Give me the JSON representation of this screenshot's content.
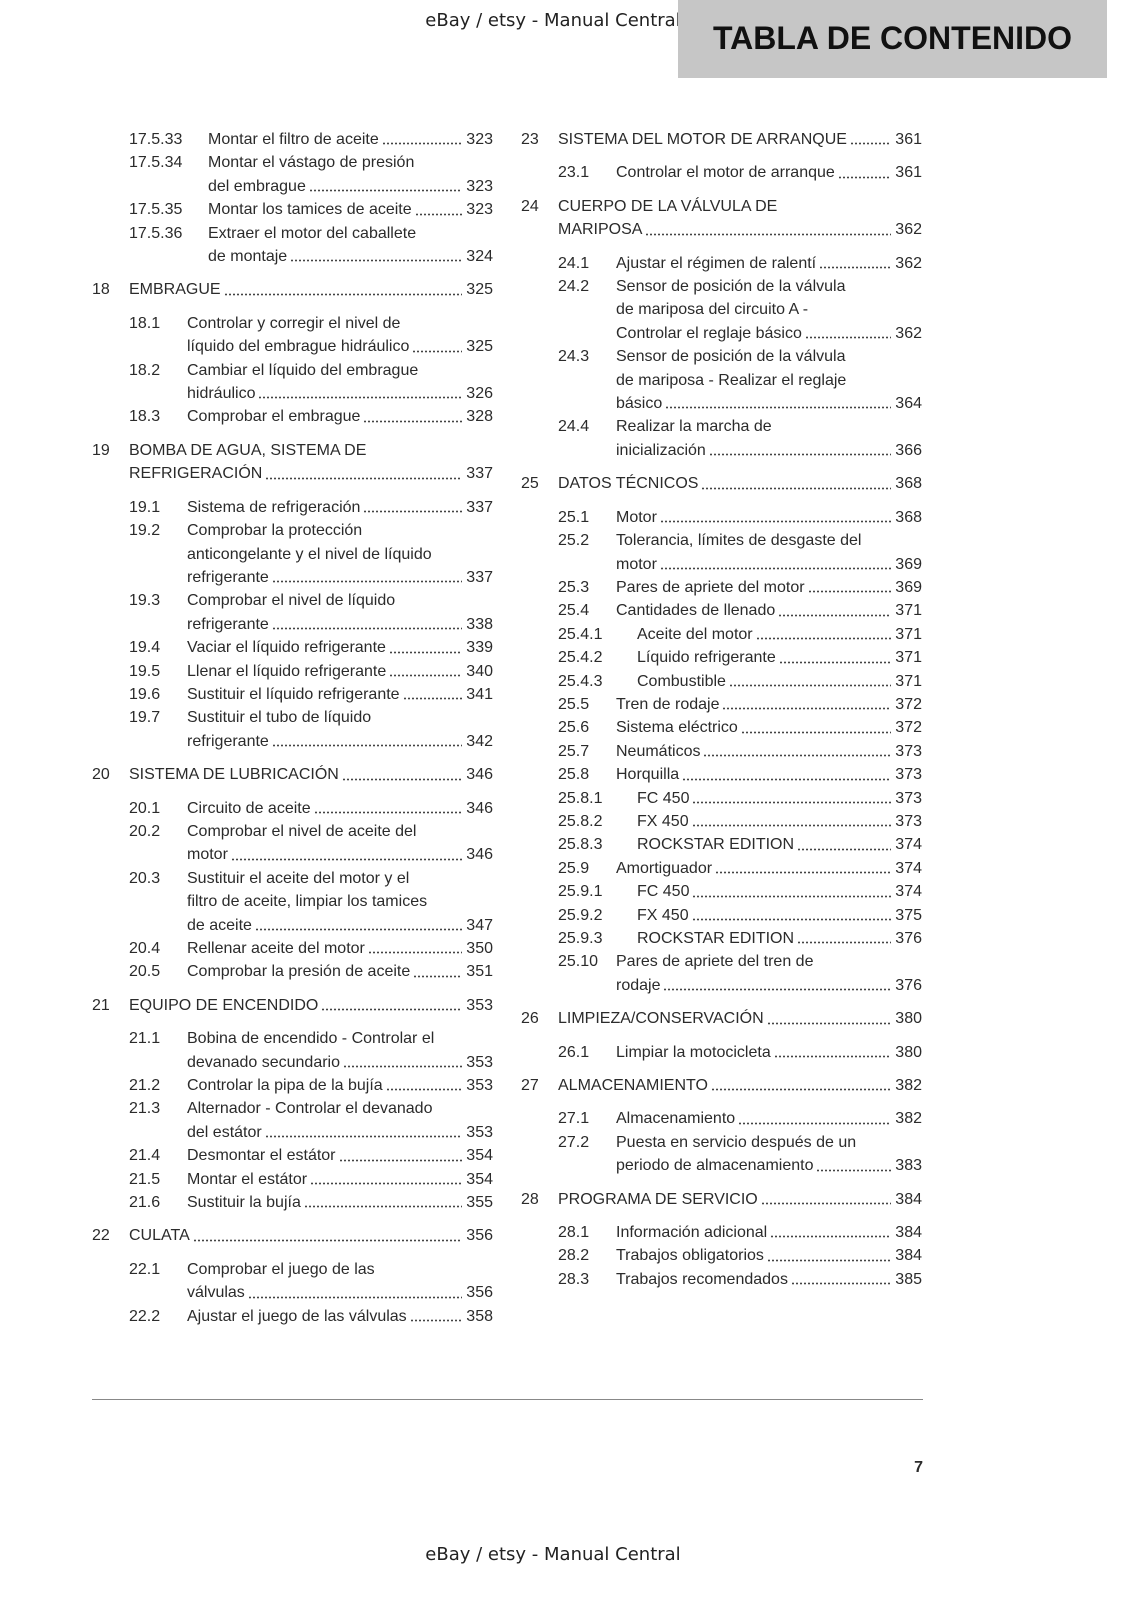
{
  "header": {
    "watermark": "eBay / etsy - Manual Central",
    "title": "TABLA DE CONTENIDO"
  },
  "columns": [
    [
      {
        "number": "17.5.33",
        "lines": [
          "Montar el filtro de aceite"
        ],
        "page": "323"
      },
      {
        "number": "17.5.34",
        "lines": [
          "Montar el vástago de presión",
          "del embrague"
        ],
        "page": "323"
      },
      {
        "number": "17.5.35",
        "lines": [
          "Montar los tamices de aceite"
        ],
        "page": "323"
      },
      {
        "number": "17.5.36",
        "lines": [
          "Extraer el motor del caballete",
          "de montaje"
        ],
        "page": "324"
      },
      {
        "number": "18",
        "lines": [
          "EMBRAGUE"
        ],
        "page": "325"
      },
      {
        "number": "18.1",
        "lines": [
          "Controlar y corregir el nivel de",
          "líquido del embrague hidráulico"
        ],
        "page": "325"
      },
      {
        "number": "18.2",
        "lines": [
          "Cambiar el líquido del embrague",
          "hidráulico"
        ],
        "page": "326"
      },
      {
        "number": "18.3",
        "lines": [
          "Comprobar el embrague"
        ],
        "page": "328"
      },
      {
        "number": "19",
        "lines": [
          "BOMBA DE AGUA, SISTEMA DE",
          "REFRIGERACIÓN"
        ],
        "page": "337"
      },
      {
        "number": "19.1",
        "lines": [
          "Sistema de refrigeración"
        ],
        "page": "337"
      },
      {
        "number": "19.2",
        "lines": [
          "Comprobar la protección",
          "anticongelante y el nivel de líquido",
          "refrigerante"
        ],
        "page": "337"
      },
      {
        "number": "19.3",
        "lines": [
          "Comprobar el nivel de líquido",
          "refrigerante"
        ],
        "page": "338"
      },
      {
        "number": "19.4",
        "lines": [
          "Vaciar el líquido refrigerante"
        ],
        "page": "339"
      },
      {
        "number": "19.5",
        "lines": [
          "Llenar el líquido refrigerante"
        ],
        "page": "340"
      },
      {
        "number": "19.6",
        "lines": [
          "Sustituir el líquido refrigerante"
        ],
        "page": "341"
      },
      {
        "number": "19.7",
        "lines": [
          "Sustituir el tubo de líquido",
          "refrigerante"
        ],
        "page": "342"
      },
      {
        "number": "20",
        "lines": [
          "SISTEMA DE LUBRICACIÓN"
        ],
        "page": "346"
      },
      {
        "number": "20.1",
        "lines": [
          "Circuito de aceite"
        ],
        "page": "346"
      },
      {
        "number": "20.2",
        "lines": [
          "Comprobar el nivel de aceite del",
          "motor"
        ],
        "page": "346"
      },
      {
        "number": "20.3",
        "lines": [
          "Sustituir el aceite del motor y el",
          "filtro de aceite, limpiar los tamices",
          "de aceite"
        ],
        "page": "347"
      },
      {
        "number": "20.4",
        "lines": [
          "Rellenar aceite del motor"
        ],
        "page": "350"
      },
      {
        "number": "20.5",
        "lines": [
          "Comprobar la presión de aceite"
        ],
        "page": "351"
      },
      {
        "number": "21",
        "lines": [
          "EQUIPO DE ENCENDIDO"
        ],
        "page": "353"
      },
      {
        "number": "21.1",
        "lines": [
          "Bobina de encendido - Controlar el",
          "devanado secundario"
        ],
        "page": "353"
      },
      {
        "number": "21.2",
        "lines": [
          "Controlar la pipa de la bujía"
        ],
        "page": "353"
      },
      {
        "number": "21.3",
        "lines": [
          "Alternador - Controlar el devanado",
          "del estátor"
        ],
        "page": "353"
      },
      {
        "number": "21.4",
        "lines": [
          "Desmontar el estátor"
        ],
        "page": "354"
      },
      {
        "number": "21.5",
        "lines": [
          "Montar el estátor"
        ],
        "page": "354"
      },
      {
        "number": "21.6",
        "lines": [
          "Sustituir la bujía"
        ],
        "page": "355"
      },
      {
        "number": "22",
        "lines": [
          "CULATA"
        ],
        "page": "356"
      },
      {
        "number": "22.1",
        "lines": [
          "Comprobar el juego de las",
          "válvulas"
        ],
        "page": "356"
      },
      {
        "number": "22.2",
        "lines": [
          "Ajustar el juego de las válvulas"
        ],
        "page": "358"
      }
    ],
    [
      {
        "number": "23",
        "lines": [
          "SISTEMA DEL MOTOR DE ARRANQUE"
        ],
        "page": "361"
      },
      {
        "number": "23.1",
        "lines": [
          "Controlar el motor de arranque"
        ],
        "page": "361"
      },
      {
        "number": "24",
        "lines": [
          "CUERPO DE LA VÁLVULA DE",
          "MARIPOSA"
        ],
        "page": "362"
      },
      {
        "number": "24.1",
        "lines": [
          "Ajustar el régimen de ralentí"
        ],
        "page": "362"
      },
      {
        "number": "24.2",
        "lines": [
          "Sensor de posición de la válvula",
          "de mariposa del circuito A -",
          "Controlar el reglaje básico"
        ],
        "page": "362"
      },
      {
        "number": "24.3",
        "lines": [
          "Sensor de posición de la válvula",
          "de mariposa - Realizar el reglaje",
          "básico"
        ],
        "page": "364"
      },
      {
        "number": "24.4",
        "lines": [
          "Realizar la marcha de",
          "inicialización"
        ],
        "page": "366"
      },
      {
        "number": "25",
        "lines": [
          "DATOS TÉCNICOS"
        ],
        "page": "368"
      },
      {
        "number": "25.1",
        "lines": [
          "Motor"
        ],
        "page": "368"
      },
      {
        "number": "25.2",
        "lines": [
          "Tolerancia, límites de desgaste del",
          "motor"
        ],
        "page": "369"
      },
      {
        "number": "25.3",
        "lines": [
          "Pares de apriete del motor"
        ],
        "page": "369"
      },
      {
        "number": "25.4",
        "lines": [
          "Cantidades de llenado"
        ],
        "page": "371"
      },
      {
        "number": "25.4.1",
        "lines": [
          "Aceite del motor"
        ],
        "page": "371"
      },
      {
        "number": "25.4.2",
        "lines": [
          "Líquido refrigerante"
        ],
        "page": "371"
      },
      {
        "number": "25.4.3",
        "lines": [
          "Combustible"
        ],
        "page": "371"
      },
      {
        "number": "25.5",
        "lines": [
          "Tren de rodaje"
        ],
        "page": "372"
      },
      {
        "number": "25.6",
        "lines": [
          "Sistema eléctrico"
        ],
        "page": "372"
      },
      {
        "number": "25.7",
        "lines": [
          "Neumáticos"
        ],
        "page": "373"
      },
      {
        "number": "25.8",
        "lines": [
          "Horquilla"
        ],
        "page": "373"
      },
      {
        "number": "25.8.1",
        "lines": [
          "FC 450"
        ],
        "page": "373"
      },
      {
        "number": "25.8.2",
        "lines": [
          "FX 450"
        ],
        "page": "373"
      },
      {
        "number": "25.8.3",
        "lines": [
          "ROCKSTAR EDITION"
        ],
        "page": "374"
      },
      {
        "number": "25.9",
        "lines": [
          "Amortiguador"
        ],
        "page": "374"
      },
      {
        "number": "25.9.1",
        "lines": [
          "FC 450"
        ],
        "page": "374"
      },
      {
        "number": "25.9.2",
        "lines": [
          "FX 450"
        ],
        "page": "375"
      },
      {
        "number": "25.9.3",
        "lines": [
          "ROCKSTAR EDITION"
        ],
        "page": "376"
      },
      {
        "number": "25.10",
        "lines": [
          "Pares de apriete del tren de",
          "rodaje"
        ],
        "page": "376"
      },
      {
        "number": "26",
        "lines": [
          "LIMPIEZA/CONSERVACIÓN"
        ],
        "page": "380"
      },
      {
        "number": "26.1",
        "lines": [
          "Limpiar la motocicleta"
        ],
        "page": "380"
      },
      {
        "number": "27",
        "lines": [
          "ALMACENAMIENTO"
        ],
        "page": "382"
      },
      {
        "number": "27.1",
        "lines": [
          "Almacenamiento"
        ],
        "page": "382"
      },
      {
        "number": "27.2",
        "lines": [
          "Puesta en servicio después de un",
          "periodo de almacenamiento"
        ],
        "page": "383"
      },
      {
        "number": "28",
        "lines": [
          "PROGRAMA DE SERVICIO"
        ],
        "page": "384"
      },
      {
        "number": "28.1",
        "lines": [
          "Información adicional"
        ],
        "page": "384"
      },
      {
        "number": "28.2",
        "lines": [
          "Trabajos obligatorios"
        ],
        "page": "384"
      },
      {
        "number": "28.3",
        "lines": [
          "Trabajos recomendados"
        ],
        "page": "385"
      }
    ]
  ],
  "page_number": "7",
  "footer": {
    "watermark": "eBay / etsy - Manual Central"
  }
}
